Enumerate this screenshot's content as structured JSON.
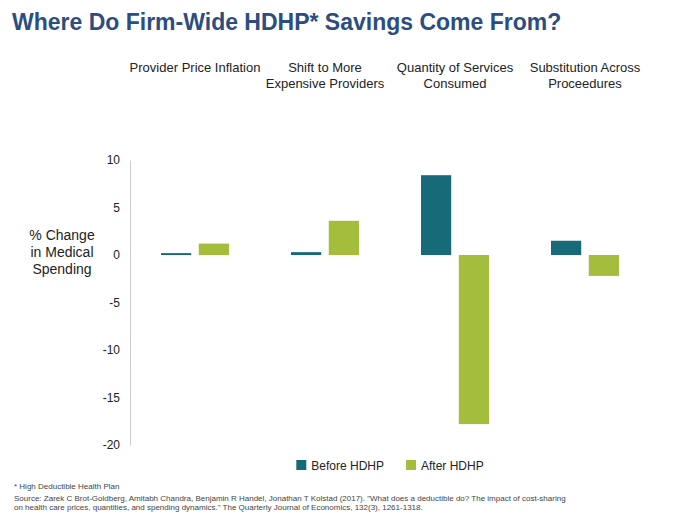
{
  "chart_data": {
    "type": "bar",
    "title": "Where Do Firm-Wide HDHP* Savings Come From?",
    "y_label": "% Change in Medical Spending",
    "categories": [
      "Provider Price Inflation",
      "Shift to More Expensive Providers",
      "Quantity of Services Consumed",
      "Substitution Across Proceedures"
    ],
    "series": [
      {
        "name": "Before HDHP",
        "color": "#176b78",
        "values": [
          0.2,
          0.3,
          8.4,
          1.5
        ]
      },
      {
        "name": "After HDHP",
        "color": "#a5bd3c",
        "values": [
          1.2,
          3.6,
          -17.8,
          -2.2
        ]
      }
    ],
    "ylim": [
      -20,
      10
    ],
    "yticks": [
      -20,
      -15,
      -10,
      -5,
      0,
      5,
      10
    ],
    "grid": false,
    "legend": "bottom",
    "annotations": [
      "* High Deductible Health Plan",
      "Source: Zarek C Brot-Goldberg, Amitabh Chandra, Benjamin R Handel, Jonathan T Kolstad (2017). \"What does a deductible do? The impact of cost-sharing on health care prices, quantities, and spending dynamics.\" The Quarterly Journal of Economics, 132(3), 1261-1318."
    ]
  }
}
